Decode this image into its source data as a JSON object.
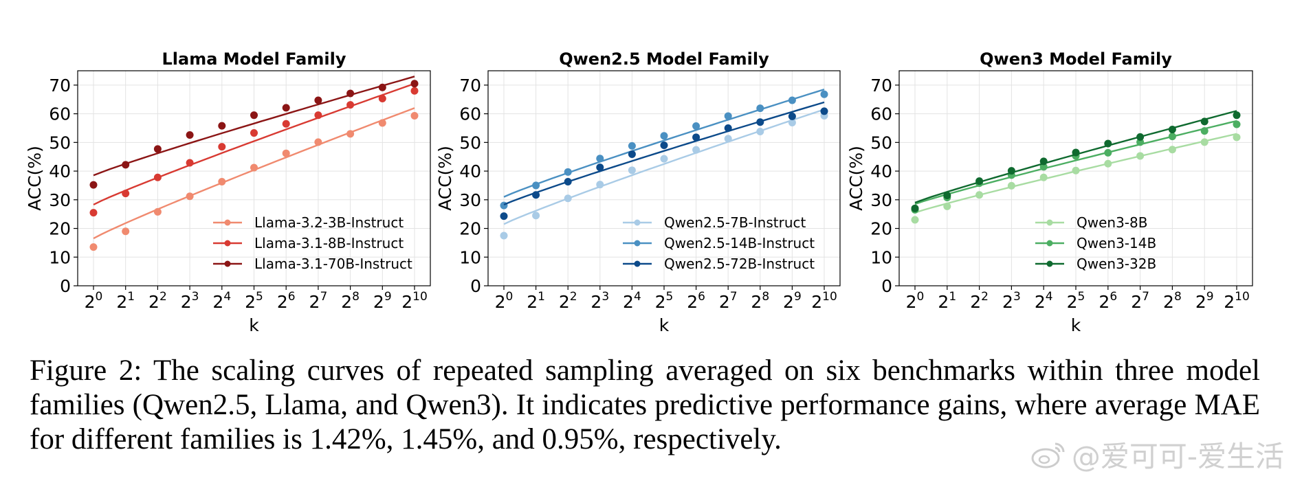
{
  "chart_data": [
    {
      "type": "line",
      "title": "Llama Model Family",
      "xlabel": "k",
      "ylabel": "ACC(%)",
      "x_tick_exponents": [
        "0",
        "1",
        "2",
        "3",
        "4",
        "5",
        "6",
        "7",
        "8",
        "9",
        "10"
      ],
      "x_base": "2",
      "yticks": [
        0,
        10,
        20,
        30,
        40,
        50,
        60,
        70
      ],
      "ylim": [
        0,
        75
      ],
      "grid": true,
      "legend_position": "lower-right",
      "series": [
        {
          "name": "Llama-3.2-3B-Instruct",
          "color": "#f08a6f",
          "points": [
            13.5,
            19,
            25.8,
            31.2,
            36.3,
            41.2,
            46.2,
            50.1,
            53,
            56.8,
            59.3
          ],
          "fit": [
            16.5,
            62
          ]
        },
        {
          "name": "Llama-3.1-8B-Instruct",
          "color": "#d83a32",
          "points": [
            25.5,
            32.2,
            37.8,
            42.9,
            48.5,
            53.3,
            56.5,
            59.5,
            63.1,
            65.3,
            68
          ],
          "fit": [
            28.3,
            70.5
          ]
        },
        {
          "name": "Llama-3.1-70B-Instruct",
          "color": "#8b1515",
          "points": [
            35.2,
            42.2,
            47.7,
            52.6,
            55.8,
            59.5,
            62.1,
            64.7,
            67.1,
            69.2,
            70.5
          ],
          "fit": [
            38.5,
            73
          ]
        }
      ]
    },
    {
      "type": "line",
      "title": "Qwen2.5 Model Family",
      "xlabel": "k",
      "ylabel": "ACC(%)",
      "x_tick_exponents": [
        "0",
        "1",
        "2",
        "3",
        "4",
        "5",
        "6",
        "7",
        "8",
        "9",
        "10"
      ],
      "x_base": "2",
      "yticks": [
        0,
        10,
        20,
        30,
        40,
        50,
        60,
        70
      ],
      "ylim": [
        0,
        75
      ],
      "grid": true,
      "legend_position": "lower-right",
      "series": [
        {
          "name": "Qwen2.5-7B-Instruct",
          "color": "#a9cbe6",
          "points": [
            17.5,
            24.5,
            30.5,
            35.3,
            40.3,
            44.3,
            47.4,
            51.3,
            53.8,
            56.9,
            59.3
          ],
          "fit": [
            21.5,
            61.5
          ]
        },
        {
          "name": "Qwen2.5-14B-Instruct",
          "color": "#4a90c2",
          "points": [
            28,
            35,
            39.7,
            44.4,
            48.8,
            52.3,
            55.7,
            59.2,
            61.9,
            64.7,
            66.8
          ],
          "fit": [
            31,
            68.5
          ]
        },
        {
          "name": "Qwen2.5-72B-Instruct",
          "color": "#0c4a8a",
          "points": [
            24.3,
            31.7,
            36.3,
            41.3,
            45.9,
            49,
            51.8,
            55,
            57.1,
            59.1,
            60.9
          ],
          "fit": [
            28.3,
            64
          ]
        }
      ]
    },
    {
      "type": "line",
      "title": "Qwen3 Model Family",
      "xlabel": "k",
      "ylabel": "ACC(%)",
      "x_tick_exponents": [
        "0",
        "1",
        "2",
        "3",
        "4",
        "5",
        "6",
        "7",
        "8",
        "9",
        "10"
      ],
      "x_base": "2",
      "yticks": [
        0,
        10,
        20,
        30,
        40,
        50,
        60,
        70
      ],
      "ylim": [
        0,
        75
      ],
      "grid": true,
      "legend_position": "lower-right",
      "series": [
        {
          "name": "Qwen3-8B",
          "color": "#a8dca2",
          "points": [
            23,
            27.7,
            31.7,
            34.9,
            37.8,
            40.2,
            42.6,
            45.3,
            47.5,
            50.1,
            51.8
          ],
          "fit": [
            25.5,
            53
          ]
        },
        {
          "name": "Qwen3-14B",
          "color": "#4cae62",
          "points": [
            26.5,
            30.8,
            35.8,
            38.6,
            41.5,
            45.3,
            46.4,
            50.1,
            52.1,
            54,
            56.3
          ],
          "fit": [
            28.5,
            57.5
          ]
        },
        {
          "name": "Qwen3-32B",
          "color": "#0f6a2f",
          "points": [
            27,
            31.5,
            36.5,
            40.1,
            43.4,
            46.5,
            49.6,
            51.9,
            54.5,
            57.3,
            59.5
          ],
          "fit": [
            29,
            61
          ]
        }
      ]
    }
  ],
  "caption": "Figure 2: The scaling curves of repeated sampling averaged on six benchmarks within three model families (Qwen2.5, Llama, and Qwen3). It indicates predictive performance gains, where average MAE for different families is 1.42%, 1.45%, and 0.95%, respectively.",
  "watermark": "@爱可可-爱生活"
}
